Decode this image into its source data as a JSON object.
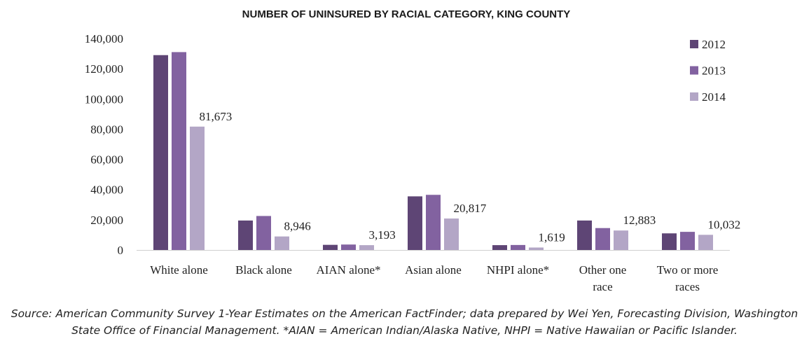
{
  "chart_data": {
    "type": "bar",
    "title": "NUMBER OF UNINSURED BY RACIAL CATEGORY, KING COUNTY",
    "categories": [
      [
        "White alone"
      ],
      [
        "Black alone"
      ],
      [
        "AIAN alone*"
      ],
      [
        "Asian alone"
      ],
      [
        "NHPI alone*"
      ],
      [
        "Other one",
        "race"
      ],
      [
        "Two or more",
        "races"
      ]
    ],
    "series": [
      {
        "name": "2012",
        "color": "#5e4575",
        "values": [
          129000,
          19500,
          3400,
          35500,
          3200,
          19500,
          11000
        ]
      },
      {
        "name": "2013",
        "color": "#8262a0",
        "values": [
          131000,
          22500,
          3600,
          36500,
          3300,
          14500,
          12000
        ]
      },
      {
        "name": "2014",
        "color": "#b3a6c6",
        "values": [
          81673,
          8946,
          3193,
          20817,
          1619,
          12883,
          10032
        ]
      }
    ],
    "data_labels": [
      "81,673",
      "8,946",
      "3,193",
      "20,817",
      "1,619",
      "12,883",
      "10,032"
    ],
    "yticks": [
      "0",
      "20,000",
      "40,000",
      "60,000",
      "80,000",
      "100,000",
      "120,000",
      "140,000"
    ],
    "ylim": [
      0,
      140000
    ],
    "legend_position": "top-right",
    "grid": false
  },
  "source_note": "Source: American Community Survey 1-Year Estimates on the American FactFinder; data prepared by Wei Yen, Forecasting Division, Washington State Office of Financial Management. *AIAN = American Indian/Alaska Native, NHPI = Native Hawaiian or Pacific Islander."
}
